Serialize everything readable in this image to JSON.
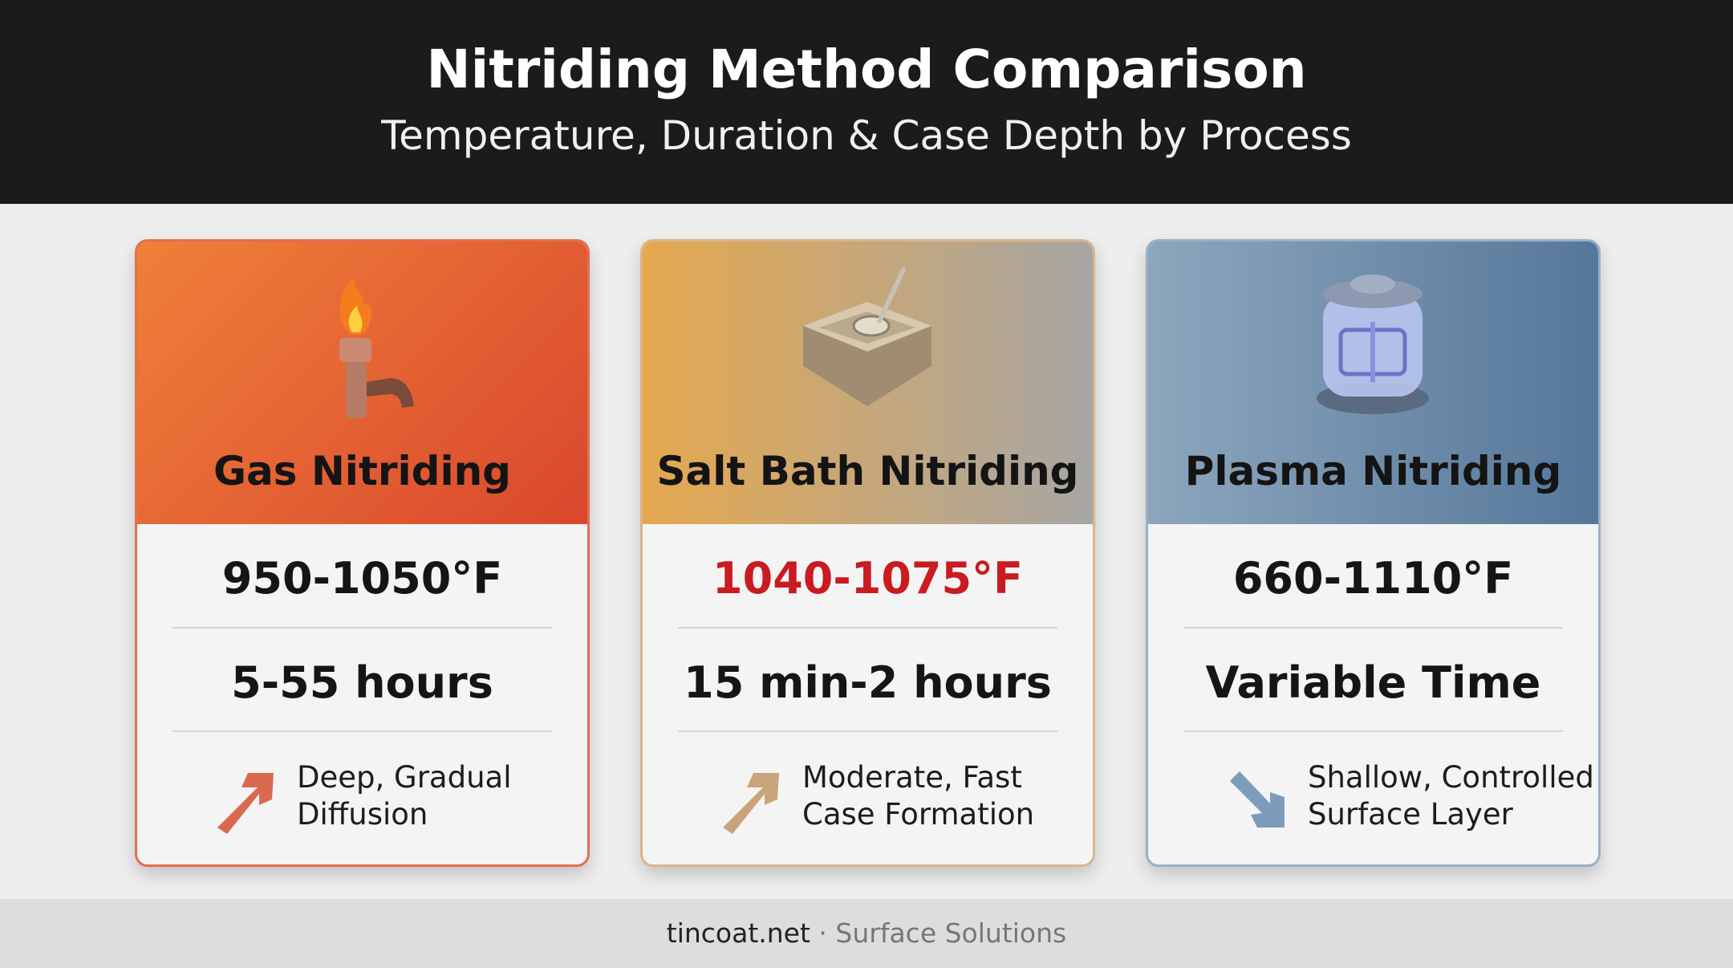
{
  "header": {
    "title": "Nitriding Method Comparison",
    "subtitle": "Temperature, Duration & Case Depth by Process"
  },
  "cards": [
    {
      "title": "Gas Nitriding",
      "temperature": "950-1050°F",
      "duration": "5-55 hours",
      "depth": [
        "Deep, Gradual",
        "Diffusion"
      ]
    },
    {
      "title": "Salt Bath Nitriding",
      "temperature": "1040-1075°F",
      "duration": "15 min-2 hours",
      "depth": [
        "Moderate, Fast",
        "Case Formation"
      ]
    },
    {
      "title": "Plasma Nitriding",
      "temperature": "660-1110°F",
      "duration": "Variable Time",
      "depth": [
        "Shallow, Controlled",
        "Surface Layer"
      ]
    }
  ],
  "footer": {
    "site": "tincoat.net",
    "tagline": "· Surface Solutions"
  }
}
